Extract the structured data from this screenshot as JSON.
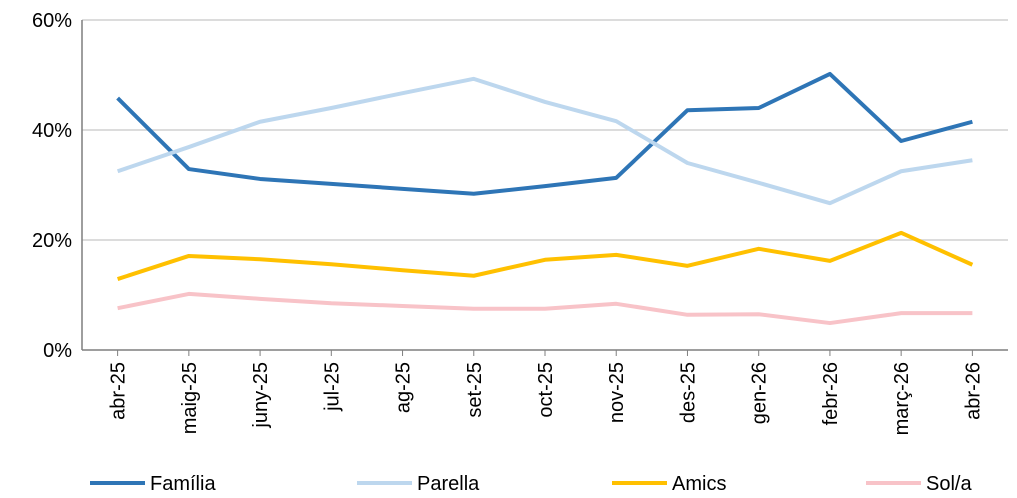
{
  "chart_data": {
    "type": "line",
    "categories": [
      "abr-25",
      "maig-25",
      "juny-25",
      "jul-25",
      "ag-25",
      "set-25",
      "oct-25",
      "nov-25",
      "des-25",
      "gen-26",
      "febr-26",
      "març-26",
      "abr-26"
    ],
    "series": [
      {
        "name": "Família",
        "color": "#2e75b6",
        "values": [
          45.8,
          32.9,
          31.1,
          30.2,
          29.3,
          28.4,
          29.8,
          31.3,
          43.6,
          44.0,
          50.2,
          38.0,
          41.5
        ]
      },
      {
        "name": "Parella",
        "color": "#bdd7ee",
        "values": [
          32.5,
          36.9,
          41.5,
          44.0,
          46.7,
          49.3,
          45.1,
          41.6,
          34.0,
          30.4,
          26.7,
          32.5,
          34.5
        ]
      },
      {
        "name": "Amics",
        "color": "#ffc000",
        "values": [
          12.9,
          17.1,
          16.5,
          15.6,
          14.5,
          13.5,
          16.4,
          17.3,
          15.3,
          18.4,
          16.2,
          21.3,
          15.5
        ]
      },
      {
        "name": "Sol/a",
        "color": "#f8c3c8",
        "values": [
          7.6,
          10.2,
          9.3,
          8.5,
          8.0,
          7.5,
          7.5,
          8.4,
          6.4,
          6.5,
          4.9,
          6.7,
          6.7
        ]
      }
    ],
    "ylim": [
      0,
      60
    ],
    "yticks": [
      {
        "value": 0,
        "label": "0%"
      },
      {
        "value": 20,
        "label": "20%"
      },
      {
        "value": 40,
        "label": "40%"
      },
      {
        "value": 60,
        "label": "60%"
      }
    ],
    "grid": true,
    "legend": "bottom"
  }
}
